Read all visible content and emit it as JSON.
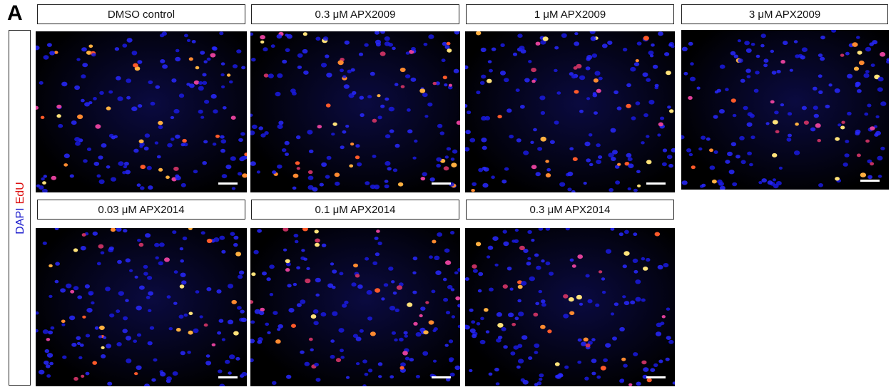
{
  "panel_letter": "A",
  "side_label": {
    "stain_1": "DAPI",
    "stain_2": "EdU"
  },
  "panels": [
    {
      "label": "DMSO control"
    },
    {
      "label": "0.3 μM APX2009"
    },
    {
      "label": "1 μM APX2009"
    },
    {
      "label": "3 μM APX2009"
    },
    {
      "label": "0.03 μM APX2014"
    },
    {
      "label": "0.1 μM APX2014"
    },
    {
      "label": "0.3 μM APX2014"
    }
  ]
}
